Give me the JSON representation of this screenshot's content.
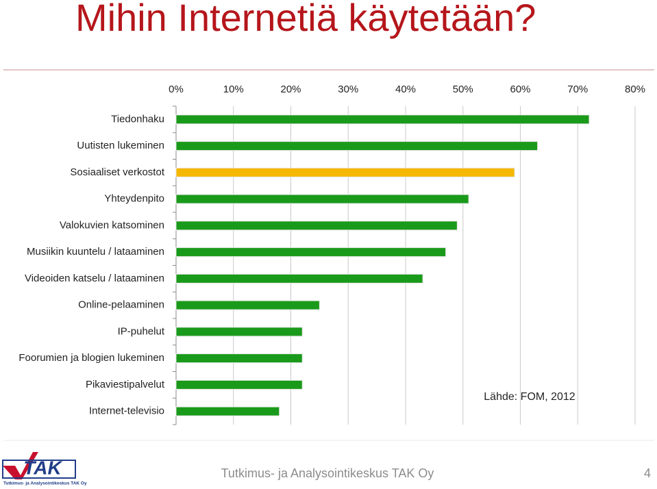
{
  "chart_data": {
    "type": "bar",
    "orientation": "horizontal",
    "title": "Mihin Internetiä käytetään?",
    "categories": [
      "Tiedonhaku",
      "Uutisten lukeminen",
      "Sosiaaliset verkostot",
      "Yhteydenpito",
      "Valokuvien katsominen",
      "Musiikin kuuntelu / lataaminen",
      "Videoiden katselu / lataaminen",
      "Online-pelaaminen",
      "IP-puhelut",
      "Foorumien ja blogien lukeminen",
      "Pikaviestipalvelut",
      "Internet-televisio"
    ],
    "values": [
      72,
      63,
      59,
      51,
      49,
      47,
      43,
      25,
      22,
      22,
      22,
      18
    ],
    "colors": [
      "#1a9a1a",
      "#1a9a1a",
      "#f5b800",
      "#1a9a1a",
      "#1a9a1a",
      "#1a9a1a",
      "#1a9a1a",
      "#1a9a1a",
      "#1a9a1a",
      "#1a9a1a",
      "#1a9a1a",
      "#1a9a1a"
    ],
    "xlim": [
      0,
      80
    ],
    "xticks": [
      {
        "value": 0,
        "label": "0%"
      },
      {
        "value": 10,
        "label": "10%"
      },
      {
        "value": 20,
        "label": "20%"
      },
      {
        "value": 30,
        "label": "30%"
      },
      {
        "value": 40,
        "label": "40%"
      },
      {
        "value": 50,
        "label": "50%"
      },
      {
        "value": 60,
        "label": "60%"
      },
      {
        "value": 70,
        "label": "70%"
      },
      {
        "value": 80,
        "label": "80%"
      }
    ],
    "grid": true,
    "annotation": "Lähde: FOM, 2012"
  },
  "footer": {
    "text": "Tutkimus- ja Analysointikeskus TAK Oy",
    "page": "4"
  },
  "logo": {
    "name": "TAK",
    "subtitle": "Tutkimus- ja Analysointikeskus TAK Oy"
  }
}
